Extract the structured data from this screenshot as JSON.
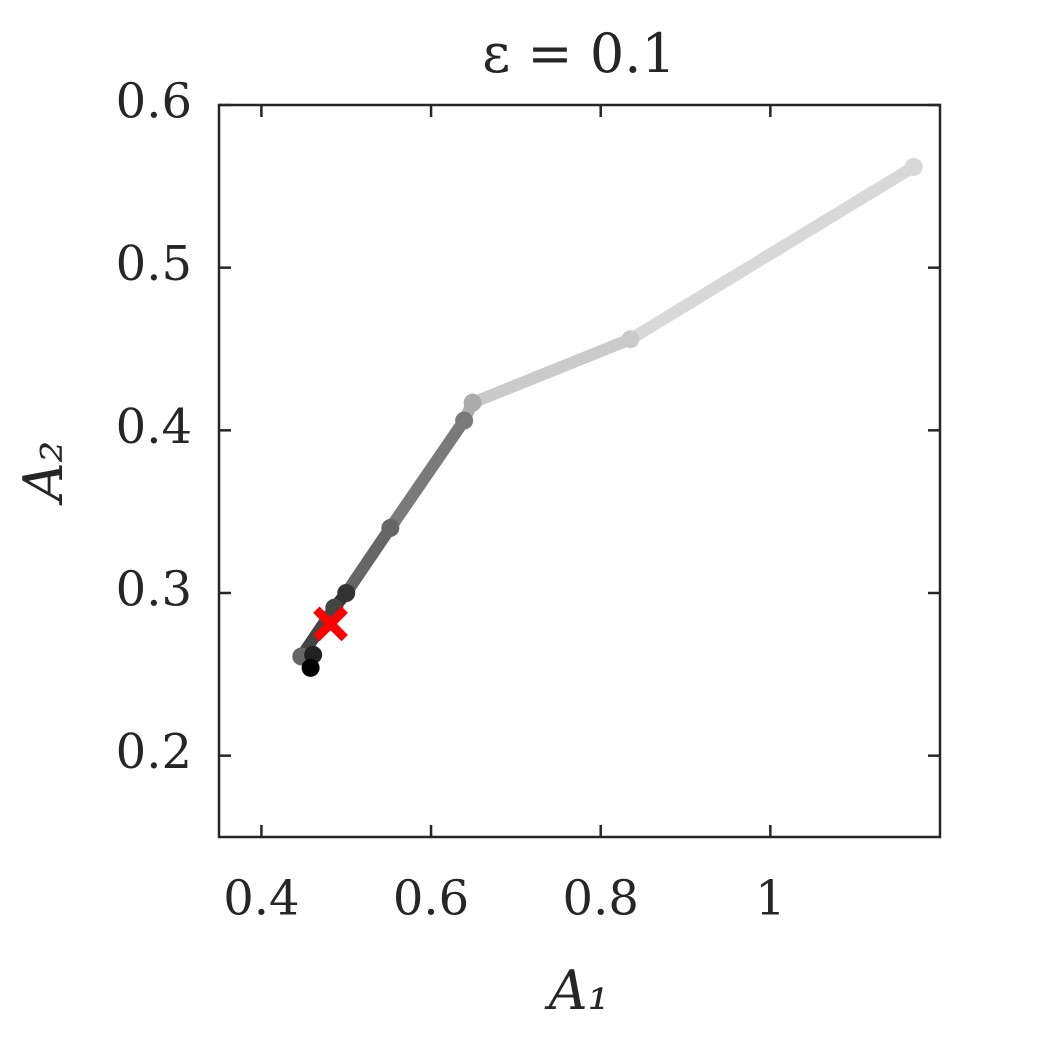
{
  "chart_data": {
    "type": "line",
    "title": "ε = 0.1",
    "x_label": "A₁",
    "y_label": "A₂",
    "xlim": [
      0.35,
      1.2
    ],
    "ylim": [
      0.15,
      0.6
    ],
    "xticks": [
      0.4,
      0.6,
      0.8,
      1
    ],
    "yticks": [
      0.2,
      0.3,
      0.4,
      0.5,
      0.6
    ],
    "series": [
      {
        "x": [
          1.169,
          0.835,
          0.649,
          0.639,
          0.552,
          0.5,
          0.486,
          0.447,
          0.461,
          0.458
        ],
        "values": [
          0.562,
          0.456,
          0.417,
          0.406,
          0.34,
          0.3,
          0.291,
          0.261,
          0.262,
          0.254
        ],
        "point_colors": [
          "#d8d8d8",
          "#cacaca",
          "#acacac",
          "#7a7a7a",
          "#666666",
          "#333333",
          "#444444",
          "#666666",
          "#222222",
          "#000000"
        ]
      },
      {
        "x": [
          0.4815
        ],
        "values": [
          0.281
        ],
        "color": "#ff0000",
        "marker": "x"
      }
    ]
  }
}
